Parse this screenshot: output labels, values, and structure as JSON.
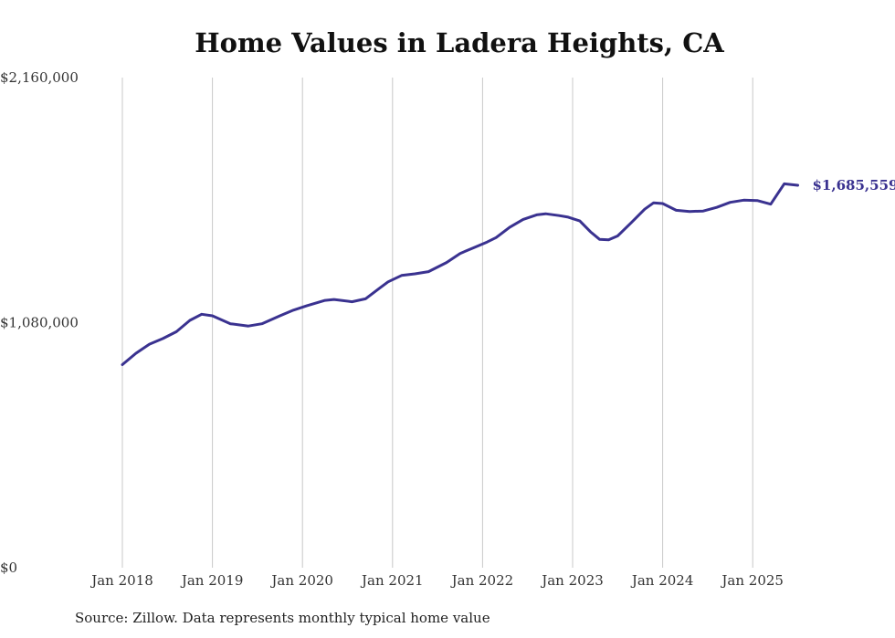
{
  "chart_data": {
    "type": "line",
    "title": "Home Values in Ladera Heights, CA",
    "xlabel": "",
    "ylabel": "",
    "ylim": [
      0,
      2160000
    ],
    "y_ticks": [
      "$2,160,000",
      "$1,080,000",
      "$0"
    ],
    "y_tick_values": [
      2160000,
      1080000,
      0
    ],
    "x_ticks": [
      "Jan 2018",
      "Jan 2019",
      "Jan 2020",
      "Jan 2021",
      "Jan 2022",
      "Jan 2023",
      "Jan 2024",
      "Jan 2025"
    ],
    "x_tick_values": [
      2018.0,
      2019.0,
      2020.0,
      2021.0,
      2022.0,
      2023.0,
      2024.0,
      2025.0
    ],
    "grid": "vertical",
    "line_color": "#3a3290",
    "end_label": "$1,685,559",
    "series": [
      {
        "points": [
          [
            2018.0,
            895000
          ],
          [
            2018.15,
            945000
          ],
          [
            2018.3,
            985000
          ],
          [
            2018.45,
            1010000
          ],
          [
            2018.6,
            1040000
          ],
          [
            2018.75,
            1090000
          ],
          [
            2018.88,
            1117000
          ],
          [
            2019.0,
            1110000
          ],
          [
            2019.2,
            1075000
          ],
          [
            2019.4,
            1065000
          ],
          [
            2019.55,
            1075000
          ],
          [
            2019.75,
            1110000
          ],
          [
            2019.9,
            1135000
          ],
          [
            2020.05,
            1155000
          ],
          [
            2020.25,
            1178000
          ],
          [
            2020.35,
            1182000
          ],
          [
            2020.55,
            1172000
          ],
          [
            2020.7,
            1185000
          ],
          [
            2020.85,
            1230000
          ],
          [
            2020.95,
            1260000
          ],
          [
            2021.1,
            1288000
          ],
          [
            2021.25,
            1295000
          ],
          [
            2021.4,
            1305000
          ],
          [
            2021.6,
            1345000
          ],
          [
            2021.75,
            1385000
          ],
          [
            2021.9,
            1410000
          ],
          [
            2022.05,
            1435000
          ],
          [
            2022.15,
            1455000
          ],
          [
            2022.3,
            1500000
          ],
          [
            2022.45,
            1535000
          ],
          [
            2022.6,
            1555000
          ],
          [
            2022.7,
            1560000
          ],
          [
            2022.85,
            1552000
          ],
          [
            2022.95,
            1545000
          ],
          [
            2023.08,
            1528000
          ],
          [
            2023.2,
            1480000
          ],
          [
            2023.3,
            1447000
          ],
          [
            2023.4,
            1445000
          ],
          [
            2023.5,
            1462000
          ],
          [
            2023.65,
            1520000
          ],
          [
            2023.8,
            1580000
          ],
          [
            2023.9,
            1608000
          ],
          [
            2024.0,
            1605000
          ],
          [
            2024.15,
            1575000
          ],
          [
            2024.3,
            1570000
          ],
          [
            2024.45,
            1572000
          ],
          [
            2024.6,
            1588000
          ],
          [
            2024.75,
            1610000
          ],
          [
            2024.9,
            1620000
          ],
          [
            2025.05,
            1618000
          ],
          [
            2025.2,
            1602000
          ],
          [
            2025.35,
            1692000
          ],
          [
            2025.5,
            1685559
          ]
        ]
      }
    ]
  },
  "source": "Source: Zillow. Data represents monthly typical home value"
}
